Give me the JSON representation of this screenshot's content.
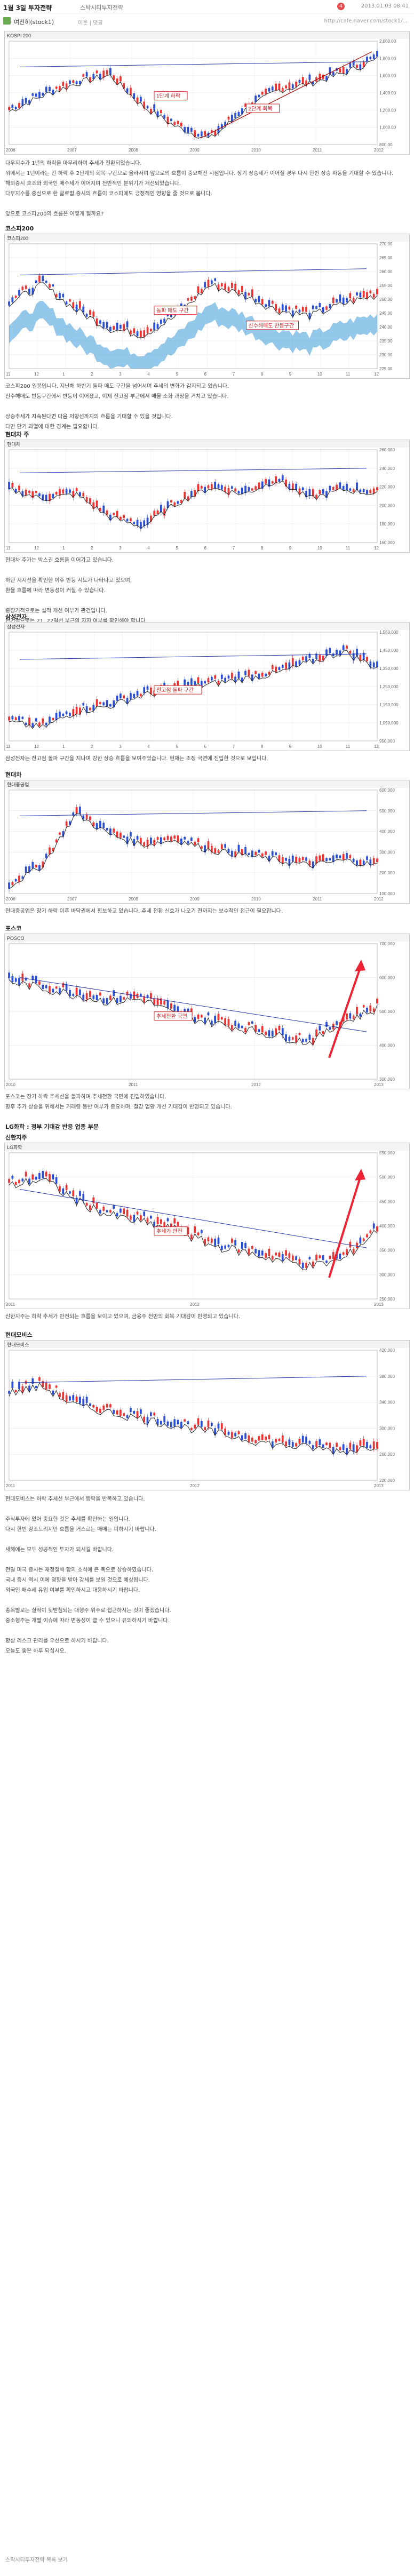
{
  "header": {
    "title": "1월 3일 투자전략",
    "category": "스탁시티투자전략",
    "date": "2013.01.03 08:41",
    "badge": "4"
  },
  "author": {
    "name": "여전히(stock1)",
    "meta": "이웃 | 댓글",
    "url": "http://cafe.naver.com/stock1/..."
  },
  "charts": [
    {
      "id": "kospi-weekly",
      "header_label": "KOSPI 200",
      "annotations": [
        "1단계 하락",
        "2단계 회복"
      ],
      "x_labels": [
        "2006",
        "2007",
        "2008",
        "2009",
        "2010",
        "2011",
        "2012"
      ],
      "y_labels": [
        "2,000.00",
        "1,800.00",
        "1,600.00",
        "1,400.00",
        "1,200.00",
        "1,000.00",
        "800.00"
      ]
    },
    {
      "id": "kospi-daily",
      "header_label": "코스피200",
      "annotations": [
        "돌파 매도 구간",
        "신수해매도 반등구간"
      ],
      "x_labels": [
        "11",
        "12",
        "1",
        "2",
        "3",
        "4",
        "5",
        "6",
        "7",
        "8",
        "9",
        "10",
        "11",
        "12"
      ],
      "y_labels": [
        "270.00",
        "265.00",
        "260.00",
        "255.00",
        "250.00",
        "245.00",
        "240.00",
        "235.00",
        "230.00",
        "225.00"
      ]
    },
    {
      "id": "hyundai-motor",
      "header_label": "현대차",
      "annotations": [],
      "x_labels": [
        "11",
        "12",
        "1",
        "2",
        "3",
        "4",
        "5",
        "6",
        "7",
        "8",
        "9",
        "10",
        "11",
        "12"
      ],
      "y_labels": [
        "260,000",
        "240,000",
        "220,000",
        "200,000",
        "180,000",
        "160,000"
      ]
    },
    {
      "id": "samsung",
      "header_label": "삼성전자",
      "annotations": [
        "전고점 돌파 구간"
      ],
      "x_labels": [
        "11",
        "12",
        "1",
        "2",
        "3",
        "4",
        "5",
        "6",
        "7",
        "8",
        "9",
        "10",
        "11",
        "12"
      ],
      "y_labels": [
        "1,550,000",
        "1,450,000",
        "1,350,000",
        "1,250,000",
        "1,150,000",
        "1,050,000",
        "950,000"
      ]
    },
    {
      "id": "hyundai-heavy",
      "header_label": "현대중공업",
      "annotations": [],
      "x_labels": [
        "2006",
        "2007",
        "2008",
        "2009",
        "2010",
        "2011",
        "2012"
      ],
      "y_labels": [
        "600,000",
        "500,000",
        "400,000",
        "300,000",
        "200,000",
        "100,000"
      ]
    },
    {
      "id": "posco",
      "header_label": "POSCO",
      "annotations": [
        "추세전환 국면"
      ],
      "x_labels": [
        "2010",
        "2011",
        "2012",
        "2013"
      ],
      "y_labels": [
        "700,000",
        "600,000",
        "500,000",
        "400,000",
        "300,000"
      ]
    },
    {
      "id": "lg-chem",
      "header_label": "LG화학",
      "annotations": [
        "추세가 반전"
      ],
      "x_labels": [
        "2011",
        "2012",
        "2013"
      ],
      "y_labels": [
        "550,000",
        "500,000",
        "450,000",
        "400,000",
        "350,000",
        "300,000",
        "250,000"
      ]
    },
    {
      "id": "hyundai-mobis",
      "header_label": "현대모비스",
      "annotations": [],
      "x_labels": [
        "2011",
        "2012",
        "2013"
      ],
      "y_labels": [
        "420,000",
        "380,000",
        "340,000",
        "300,000",
        "260,000",
        "220,000"
      ]
    }
  ],
  "sections": {
    "s1": "코스피200",
    "s2": "현대차 주",
    "s3": "삼성전자",
    "s4": "현대차",
    "s5": "포스코",
    "s6": "LG화학 : 정부 기대감 반응 업종 부문",
    "s7": "신한지주",
    "s8": "현대모비스"
  },
  "paragraphs": {
    "p1": [
      "다우지수가 1년의 하락을 마무리하며 추세가 전환되었습니다.",
      "위에서는 1년이라는 긴 하락 후 2단계의 회복 구간으로 올라서며 앞으로의 흐름이 중요해진 시점입니다. 장기 상승세가 이어질 경우 다시 한번 상승 파동을 기대할 수 있습니다.",
      "해외증시 호조와 외국인 매수세가 이어지며 전반적인 분위기가 개선되었습니다.",
      "다우지수를 중심으로 한 글로벌 증시의 흐름이 코스피에도 긍정적인 영향을 줄 것으로 봅니다.",
      "",
      "앞으로 코스피200의 흐름은 어떻게 될까요?"
    ],
    "p2": [
      "코스피200 일봉입니다. 지난해 하반기 돌파 매도 구간을 넘어서며 추세의 변화가 감지되고 있습니다.",
      "신수해매도 반등구간에서 반등이 이어졌고, 이제 전고점 부근에서 매물 소화 과정을 거치고 있습니다.",
      "",
      "상승추세가 지속된다면 다음 저항선까지의 흐름을 기대할 수 있을 것입니다.",
      "다만 단기 과열에 대한 경계는 필요합니다."
    ],
    "p3": [
      "현대차 주가는 박스권 흐름을 이어가고 있습니다.",
      "",
      "하단 지지선을 확인한 이후 반등 시도가 나타나고 있으며,",
      "환율 흐름에 따라 변동성이 커질 수 있습니다.",
      "",
      "중장기적으로는 실적 개선 여부가 관건입니다.",
      "단기적으로는 21, 22일선 부근의 지지 여부를 확인해야 합니다."
    ],
    "p4": [
      "삼성전자는 전고점 돌파 구간을 지나며 강한 상승 흐름을 보여주었습니다. 현재는 조정 국면에 진입한 것으로 보입니다."
    ],
    "p5": [
      "현대중공업은 장기 하락 이후 바닥권에서 횡보하고 있습니다. 추세 전환 신호가 나오기 전까지는 보수적인 접근이 필요합니다."
    ],
    "p6": [
      "포스코는 장기 하락 추세선을 돌파하며 추세전환 국면에 진입하였습니다.",
      "향후 추가 상승을 위해서는 거래량 동반 여부가 중요하며, 철강 업황 개선 기대감이 반영되고 있습니다."
    ],
    "p7": [
      "신한지주는 하락 추세가 반전되는 흐름을 보이고 있으며, 금융주 전반의 회복 기대감이 반영되고 있습니다."
    ],
    "p8": [
      "현대모비스는 하락 추세선 부근에서 등락을 반복하고 있습니다.",
      "",
      "주식투자에 있어 중요한 것은 추세를 확인하는 일입니다.",
      "다시 한번 강조드리지만 흐름을 거스르는 매매는 피하시기 바랍니다.",
      "",
      "새해에는 모두 성공적인 투자가 되시길 바랍니다.",
      "",
      "전일 미국 증시는 재정절벽 합의 소식에 큰 폭으로 상승하였습니다.",
      "국내 증시 역시 이에 영향을 받아 강세를 보일 것으로 예상됩니다.",
      "외국인 매수세 유입 여부를 확인하시고 대응하시기 바랍니다.",
      "",
      "종목별로는 실적이 뒷받침되는 대형주 위주로 접근하시는 것이 좋겠습니다.",
      "중소형주는 개별 이슈에 따라 변동성이 클 수 있으니 유의하시기 바랍니다.",
      "",
      "항상 리스크 관리를 우선으로 하시기 바랍니다.",
      "오늘도 좋은 하루 되십시오."
    ]
  },
  "footer": {
    "text": "스탁시티투자전략 목록 보기"
  }
}
